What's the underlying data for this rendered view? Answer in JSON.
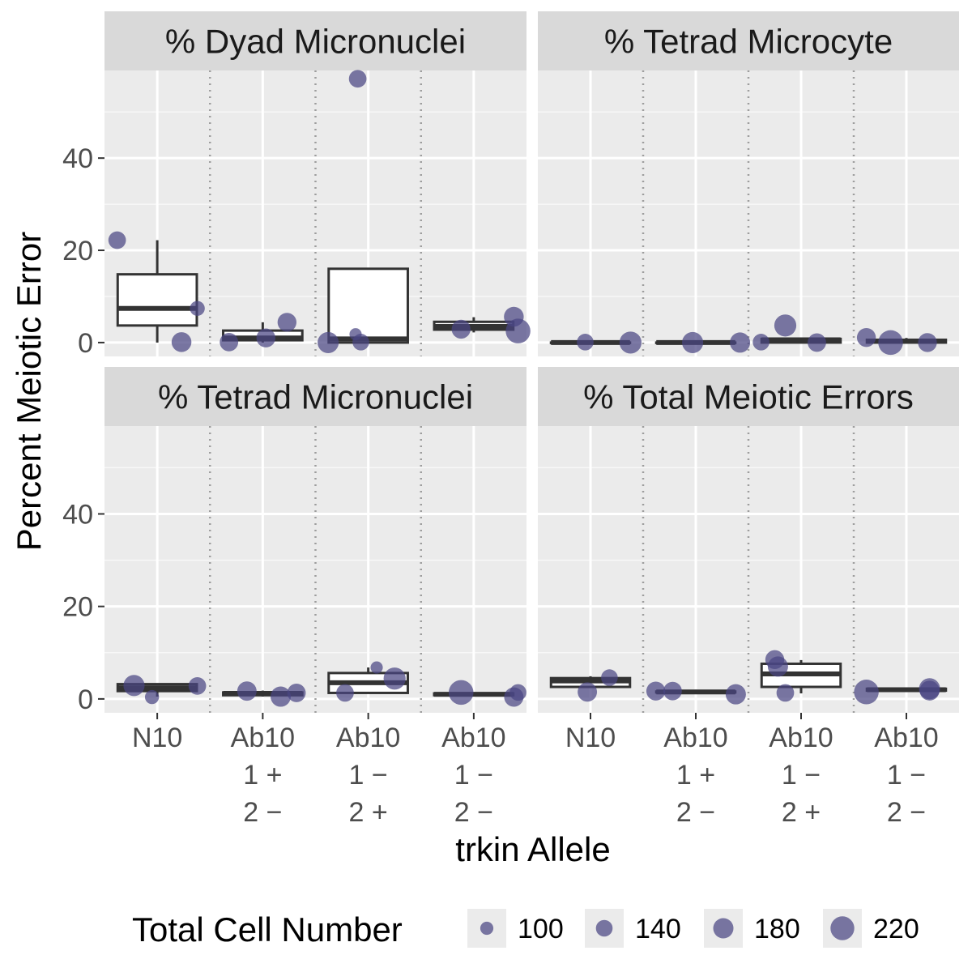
{
  "chart_data": {
    "type": "scatter",
    "subtype": "faceted boxplot with jittered points",
    "xlabel": "trkin Allele",
    "ylabel": "Percent Meiotic Error",
    "ylim": [
      -3,
      59
    ],
    "yticks": [
      0,
      20,
      40
    ],
    "categories": [
      {
        "key": "N10",
        "lines": [
          "N10"
        ]
      },
      {
        "key": "Ab10 1+ 2-",
        "lines": [
          "Ab10",
          "1 +",
          "2 −"
        ]
      },
      {
        "key": "Ab10 1- 2+",
        "lines": [
          "Ab10",
          "1 −",
          "2 +"
        ]
      },
      {
        "key": "Ab10 1- 2-",
        "lines": [
          "Ab10",
          "1 −",
          "2 −"
        ]
      }
    ],
    "point_color": "#4a4582",
    "grid": true,
    "legend": {
      "title": "Total Cell Number",
      "position": "bottom",
      "entries": [
        {
          "label": "100",
          "value": 100
        },
        {
          "label": "140",
          "value": 140
        },
        {
          "label": "180",
          "value": 180
        },
        {
          "label": "220",
          "value": 220
        }
      ]
    },
    "facets": [
      {
        "title": "% Dyad Micronuclei",
        "boxes": [
          {
            "lower_whisker": 0,
            "q1": 3.7,
            "median": 7.4,
            "q3": 14.8,
            "upper_whisker": 22.2
          },
          {
            "lower_whisker": 0,
            "q1": 0.5,
            "median": 1.0,
            "q3": 2.6,
            "upper_whisker": 4.4
          },
          {
            "lower_whisker": 0,
            "q1": 0,
            "median": 0.8,
            "q3": 16.0,
            "upper_whisker": 16.0
          },
          {
            "lower_whisker": 2.2,
            "q1": 2.8,
            "median": 3.5,
            "q3": 4.5,
            "upper_whisker": 5.5
          }
        ],
        "points": [
          {
            "cat": 0,
            "dx": -0.38,
            "y": 22.2,
            "n": 150
          },
          {
            "cat": 0,
            "dx": 0.23,
            "y": 0.1,
            "n": 175
          },
          {
            "cat": 0,
            "dx": 0.38,
            "y": 7.4,
            "n": 120
          },
          {
            "cat": 1,
            "dx": -0.32,
            "y": 0.1,
            "n": 160
          },
          {
            "cat": 1,
            "dx": 0.03,
            "y": 1.0,
            "n": 165
          },
          {
            "cat": 1,
            "dx": 0.23,
            "y": 4.4,
            "n": 165
          },
          {
            "cat": 2,
            "dx": -0.38,
            "y": 0.0,
            "n": 190
          },
          {
            "cat": 2,
            "dx": -0.12,
            "y": 1.8,
            "n": 90
          },
          {
            "cat": 2,
            "dx": -0.1,
            "y": 57.2,
            "n": 150
          },
          {
            "cat": 2,
            "dx": -0.07,
            "y": 0.1,
            "n": 140
          },
          {
            "cat": 3,
            "dx": -0.12,
            "y": 2.9,
            "n": 165
          },
          {
            "cat": 3,
            "dx": 0.38,
            "y": 5.6,
            "n": 175
          },
          {
            "cat": 3,
            "dx": 0.42,
            "y": 2.5,
            "n": 230
          }
        ]
      },
      {
        "title": "% Tetrad Microcyte",
        "boxes": [
          {
            "lower_whisker": 0,
            "q1": 0,
            "median": 0,
            "q3": 0,
            "upper_whisker": 0
          },
          {
            "lower_whisker": 0,
            "q1": 0,
            "median": 0,
            "q3": 0,
            "upper_whisker": 0
          },
          {
            "lower_whisker": 0,
            "q1": 0,
            "median": 0.6,
            "q3": 0.8,
            "upper_whisker": 1.0
          },
          {
            "lower_whisker": 0,
            "q1": 0,
            "median": 0.3,
            "q3": 0.6,
            "upper_whisker": 1.0
          }
        ],
        "points": [
          {
            "cat": 0,
            "dx": -0.05,
            "y": 0.1,
            "n": 140
          },
          {
            "cat": 0,
            "dx": 0.38,
            "y": 0.0,
            "n": 200
          },
          {
            "cat": 1,
            "dx": -0.03,
            "y": 0.0,
            "n": 190
          },
          {
            "cat": 1,
            "dx": 0.42,
            "y": 0.0,
            "n": 180
          },
          {
            "cat": 2,
            "dx": -0.38,
            "y": 0.1,
            "n": 140
          },
          {
            "cat": 2,
            "dx": -0.15,
            "y": 3.7,
            "n": 200
          },
          {
            "cat": 2,
            "dx": 0.15,
            "y": 0.0,
            "n": 160
          },
          {
            "cat": 3,
            "dx": -0.38,
            "y": 1.1,
            "n": 165
          },
          {
            "cat": 3,
            "dx": -0.15,
            "y": 0.0,
            "n": 230
          },
          {
            "cat": 3,
            "dx": 0.2,
            "y": 0.0,
            "n": 165
          }
        ]
      },
      {
        "title": "% Tetrad Micronuclei",
        "boxes": [
          {
            "lower_whisker": 0.5,
            "q1": 1.7,
            "median": 2.4,
            "q3": 3.2,
            "upper_whisker": 3.2
          },
          {
            "lower_whisker": 0.5,
            "q1": 0.8,
            "median": 1.2,
            "q3": 1.4,
            "upper_whisker": 1.8
          },
          {
            "lower_whisker": 1.3,
            "q1": 1.3,
            "median": 3.5,
            "q3": 5.6,
            "upper_whisker": 6.8
          },
          {
            "lower_whisker": 0.5,
            "q1": 0.8,
            "median": 1.0,
            "q3": 1.2,
            "upper_whisker": 1.4
          }
        ],
        "points": [
          {
            "cat": 0,
            "dx": -0.22,
            "y": 2.9,
            "n": 190
          },
          {
            "cat": 0,
            "dx": -0.05,
            "y": 0.4,
            "n": 110
          },
          {
            "cat": 0,
            "dx": 0.38,
            "y": 2.8,
            "n": 150
          },
          {
            "cat": 1,
            "dx": -0.15,
            "y": 1.7,
            "n": 170
          },
          {
            "cat": 1,
            "dx": 0.17,
            "y": 0.5,
            "n": 180
          },
          {
            "cat": 1,
            "dx": 0.32,
            "y": 1.3,
            "n": 160
          },
          {
            "cat": 2,
            "dx": -0.22,
            "y": 1.3,
            "n": 150
          },
          {
            "cat": 2,
            "dx": 0.08,
            "y": 6.8,
            "n": 90
          },
          {
            "cat": 2,
            "dx": 0.25,
            "y": 4.4,
            "n": 200
          },
          {
            "cat": 3,
            "dx": -0.12,
            "y": 1.4,
            "n": 230
          },
          {
            "cat": 3,
            "dx": 0.38,
            "y": 0.4,
            "n": 170
          },
          {
            "cat": 3,
            "dx": 0.42,
            "y": 1.4,
            "n": 140
          }
        ]
      },
      {
        "title": "% Total Meiotic Errors",
        "boxes": [
          {
            "lower_whisker": 2.6,
            "q1": 2.6,
            "median": 3.9,
            "q3": 4.5,
            "upper_whisker": 4.9
          },
          {
            "lower_whisker": 1.4,
            "q1": 1.4,
            "median": 1.5,
            "q3": 1.6,
            "upper_whisker": 2.0
          },
          {
            "lower_whisker": 1.2,
            "q1": 2.6,
            "median": 5.4,
            "q3": 7.6,
            "upper_whisker": 8.4
          },
          {
            "lower_whisker": 1.5,
            "q1": 1.8,
            "median": 2.0,
            "q3": 2.2,
            "upper_whisker": 2.3
          }
        ],
        "points": [
          {
            "cat": 0,
            "dx": -0.03,
            "y": 1.5,
            "n": 170
          },
          {
            "cat": 0,
            "dx": 0.18,
            "y": 4.6,
            "n": 140
          },
          {
            "cat": 1,
            "dx": -0.38,
            "y": 1.7,
            "n": 165
          },
          {
            "cat": 1,
            "dx": -0.22,
            "y": 1.7,
            "n": 160
          },
          {
            "cat": 1,
            "dx": 0.38,
            "y": 1.0,
            "n": 180
          },
          {
            "cat": 2,
            "dx": -0.25,
            "y": 8.5,
            "n": 165
          },
          {
            "cat": 2,
            "dx": -0.15,
            "y": 1.3,
            "n": 150
          },
          {
            "cat": 2,
            "dx": -0.22,
            "y": 7.0,
            "n": 180
          },
          {
            "cat": 3,
            "dx": -0.38,
            "y": 1.5,
            "n": 230
          },
          {
            "cat": 3,
            "dx": 0.22,
            "y": 2.2,
            "n": 190
          },
          {
            "cat": 3,
            "dx": 0.22,
            "y": 1.8,
            "n": 175
          }
        ]
      }
    ]
  }
}
